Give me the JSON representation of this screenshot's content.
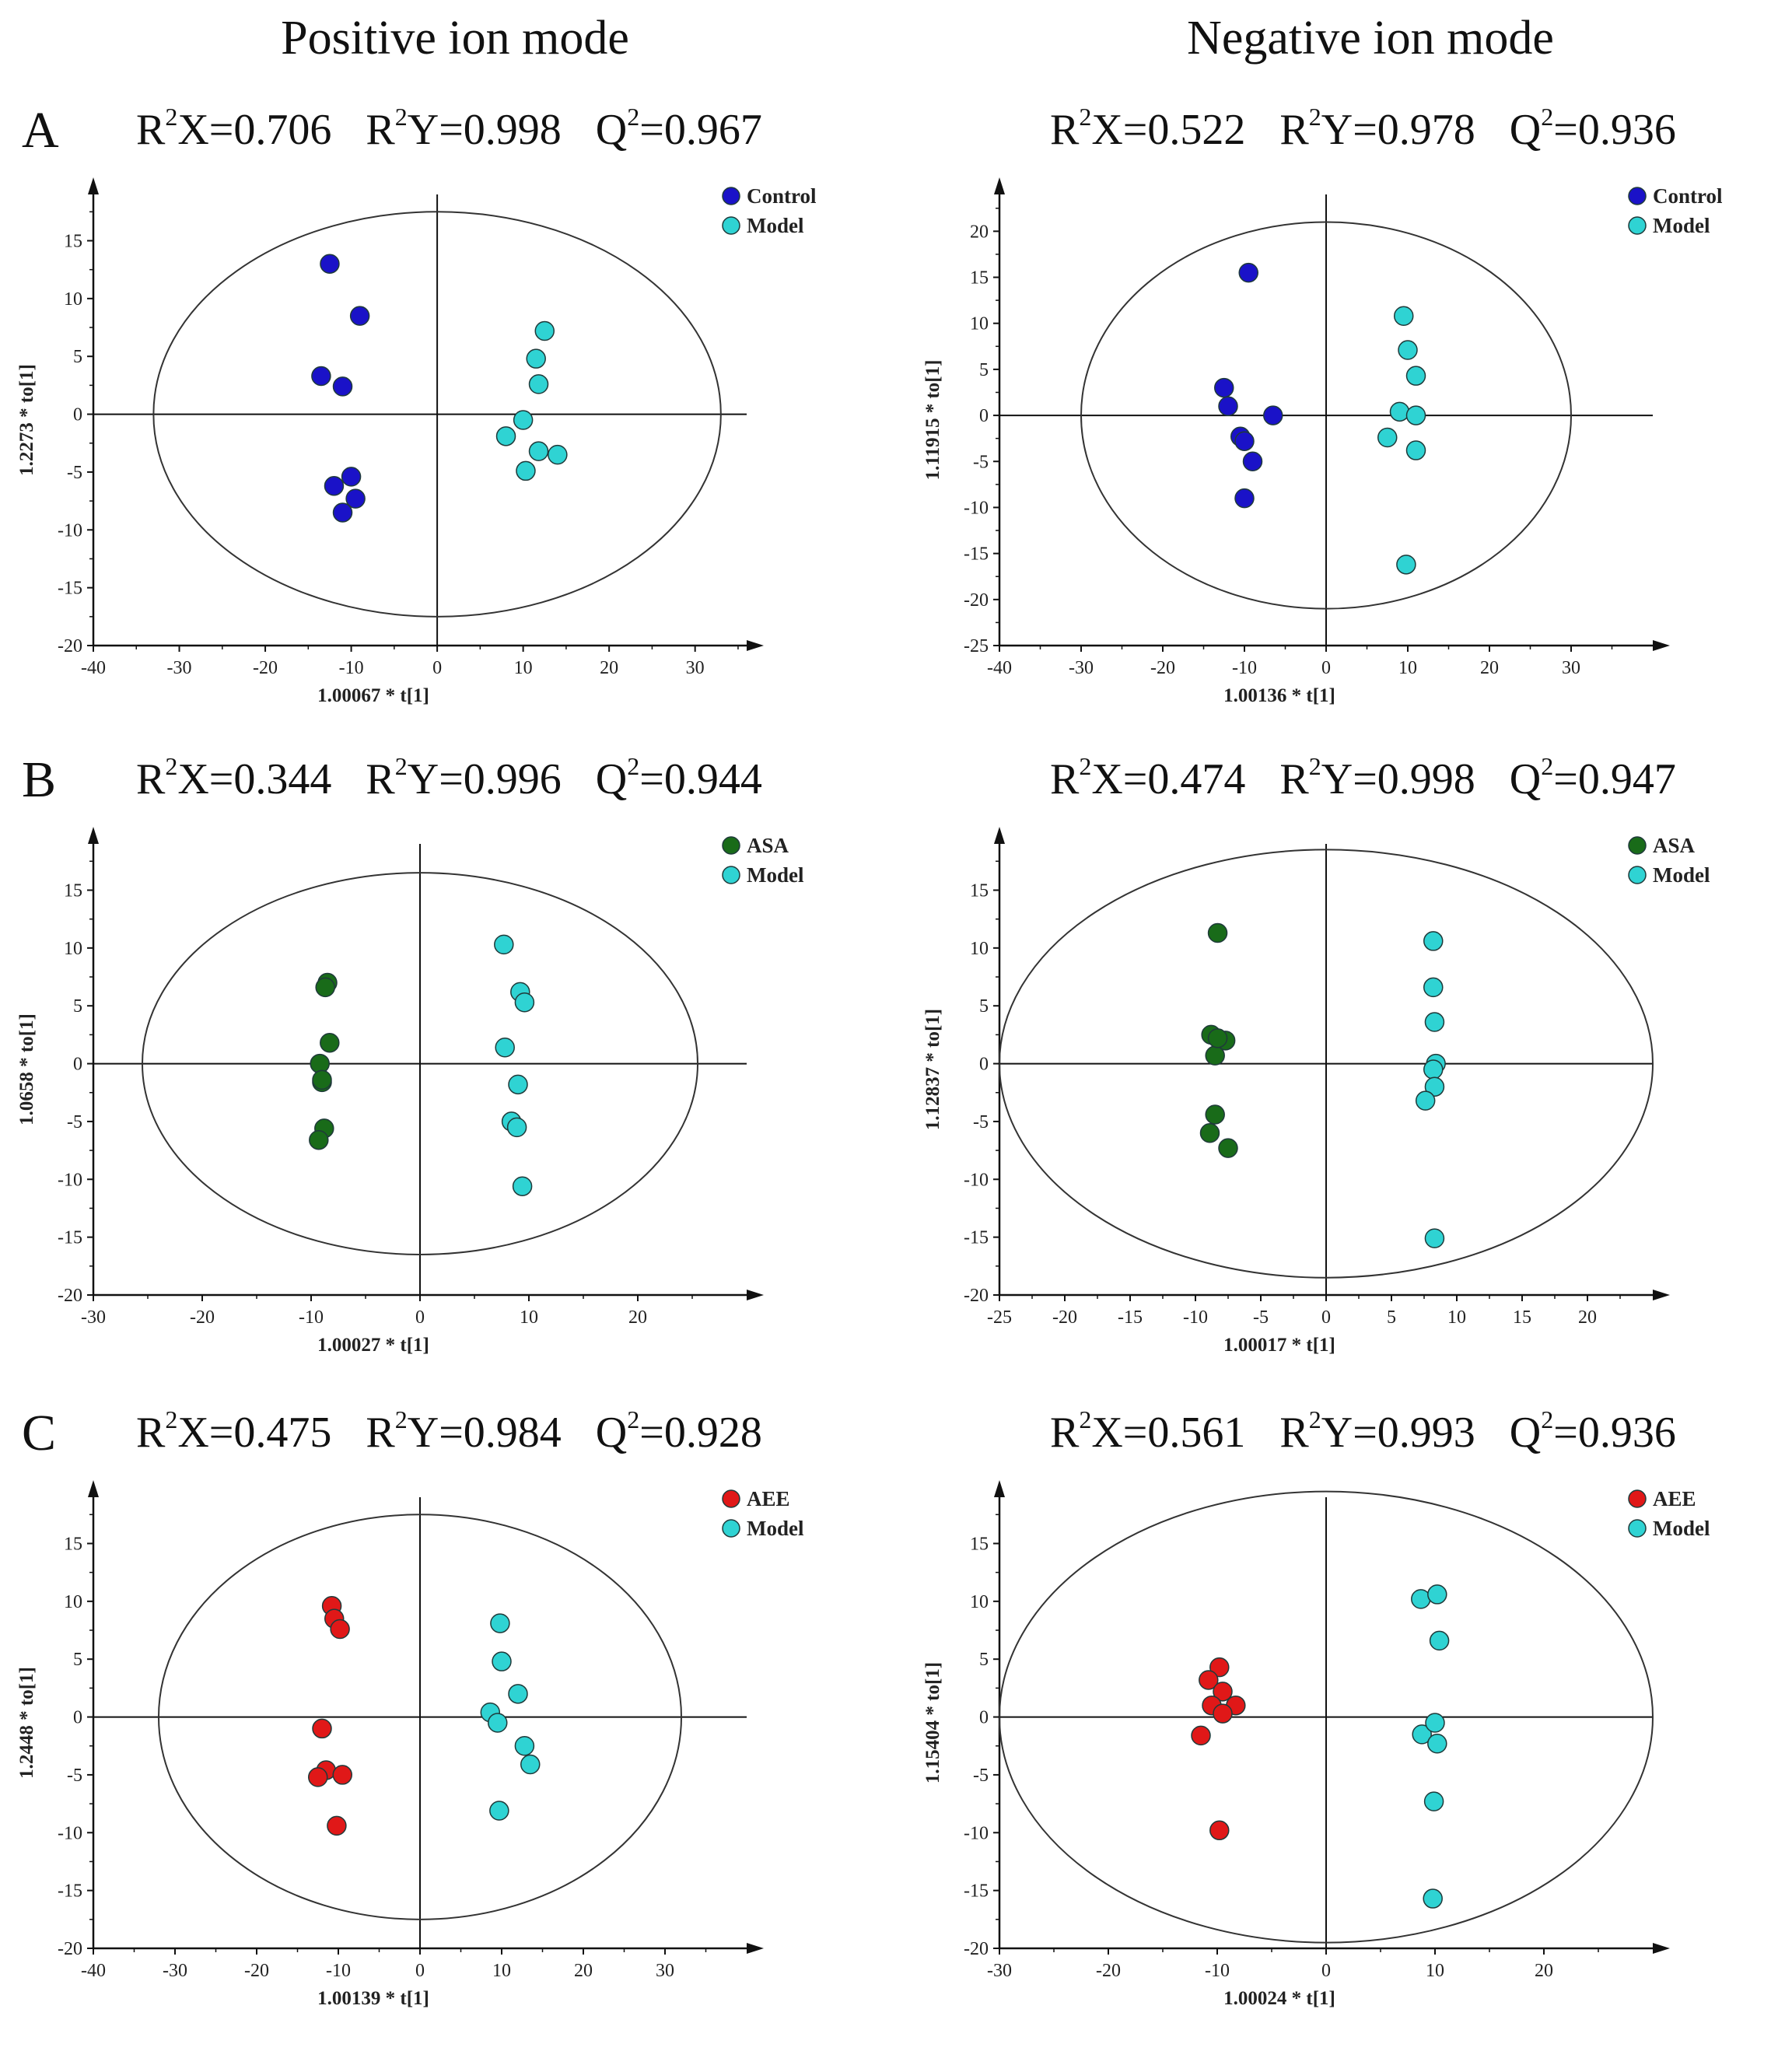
{
  "column_titles": {
    "left": "Positive ion mode",
    "right": "Negative ion mode"
  },
  "colors": {
    "control": "#1a12c8",
    "model": "#2fd3d3",
    "asa": "#196b19",
    "aee": "#e01818",
    "axis": "#111111",
    "ellipse": "#333333"
  },
  "rows": [
    {
      "letter": "A",
      "left": {
        "r2x": "0.706",
        "r2y": "0.998",
        "q2": "0.967"
      },
      "right": {
        "r2x": "0.522",
        "r2y": "0.978",
        "q2": "0.936"
      }
    },
    {
      "letter": "B",
      "left": {
        "r2x": "0.344",
        "r2y": "0.996",
        "q2": "0.944"
      },
      "right": {
        "r2x": "0.474",
        "r2y": "0.998",
        "q2": "0.947"
      }
    },
    {
      "letter": "C",
      "left": {
        "r2x": "0.475",
        "r2y": "0.984",
        "q2": "0.928"
      },
      "right": {
        "r2x": "0.561",
        "r2y": "0.993",
        "q2": "0.936"
      }
    }
  ],
  "stat_labels": {
    "r2x_pre": "R",
    "r2x_post": "X=",
    "r2y_pre": "R",
    "r2y_post": "Y=",
    "q2_pre": "Q",
    "q2_post": "=",
    "sup": "2"
  },
  "chart_data": [
    {
      "id": "A-pos",
      "type": "scatter",
      "xlabel": "1.00067 * t[1]",
      "ylabel": "1.2273 * to[1]",
      "xlim": [
        -40,
        36
      ],
      "ylim": [
        -20,
        19
      ],
      "xticks": [
        -40,
        -30,
        -20,
        -10,
        0,
        10,
        20,
        30
      ],
      "yticks": [
        -20,
        -15,
        -10,
        -5,
        0,
        5,
        10,
        15
      ],
      "ellipse": {
        "rx": 33,
        "ry": 17.5
      },
      "legend": "top-right",
      "series": [
        {
          "name": "Control",
          "color": "control",
          "points": [
            [
              -12.5,
              13
            ],
            [
              -9,
              8.5
            ],
            [
              -13.5,
              3.3
            ],
            [
              -11,
              2.4
            ],
            [
              -10,
              -5.4
            ],
            [
              -12,
              -6.2
            ],
            [
              -9.5,
              -7.3
            ],
            [
              -11,
              -8.5
            ]
          ]
        },
        {
          "name": "Model",
          "color": "model",
          "points": [
            [
              12.5,
              7.2
            ],
            [
              11.5,
              4.8
            ],
            [
              11.8,
              2.6
            ],
            [
              10,
              -0.5
            ],
            [
              8,
              -1.9
            ],
            [
              11.8,
              -3.2
            ],
            [
              14,
              -3.5
            ],
            [
              10.3,
              -4.9
            ]
          ]
        }
      ]
    },
    {
      "id": "A-neg",
      "type": "scatter",
      "xlabel": "1.00136 * t[1]",
      "ylabel": "1.11915 * to[1]",
      "xlim": [
        -40,
        40
      ],
      "ylim": [
        -25,
        24
      ],
      "xticks": [
        -40,
        -30,
        -20,
        -10,
        0,
        10,
        20,
        30
      ],
      "yticks": [
        -25,
        -20,
        -15,
        -10,
        -5,
        0,
        5,
        10,
        15,
        20
      ],
      "ellipse": {
        "rx": 30,
        "ry": 21
      },
      "legend": "top-right",
      "series": [
        {
          "name": "Control",
          "color": "control",
          "points": [
            [
              -9.5,
              15.5
            ],
            [
              -12.5,
              3
            ],
            [
              -12,
              1
            ],
            [
              -10.5,
              -2.3
            ],
            [
              -10,
              -2.8
            ],
            [
              -6.5,
              0
            ],
            [
              -9,
              -5
            ],
            [
              -10,
              -9
            ]
          ]
        },
        {
          "name": "Model",
          "color": "model",
          "points": [
            [
              9.5,
              10.8
            ],
            [
              10,
              7.1
            ],
            [
              11,
              4.3
            ],
            [
              9,
              0.4
            ],
            [
              11,
              0
            ],
            [
              7.5,
              -2.4
            ],
            [
              11,
              -3.8
            ],
            [
              9.8,
              -16.2
            ]
          ]
        }
      ]
    },
    {
      "id": "B-pos",
      "type": "scatter",
      "xlabel": "1.00027 * t[1]",
      "ylabel": "1.0658 * to[1]",
      "xlim": [
        -30,
        30
      ],
      "ylim": [
        -20,
        19
      ],
      "xticks": [
        -30,
        -20,
        -10,
        0,
        10,
        20
      ],
      "yticks": [
        -20,
        -15,
        -10,
        -5,
        0,
        5,
        10,
        15
      ],
      "ellipse": {
        "rx": 25.5,
        "ry": 16.5
      },
      "legend": "top-right",
      "series": [
        {
          "name": "ASA",
          "color": "asa",
          "points": [
            [
              -8.5,
              7
            ],
            [
              -8.7,
              6.6
            ],
            [
              -8.3,
              1.8
            ],
            [
              -9.2,
              0
            ],
            [
              -9,
              -1.6
            ],
            [
              -8.8,
              -5.6
            ],
            [
              -9.3,
              -6.6
            ],
            [
              -9,
              -1.4
            ]
          ]
        },
        {
          "name": "Model",
          "color": "model",
          "points": [
            [
              7.7,
              10.3
            ],
            [
              9.2,
              6.2
            ],
            [
              9.6,
              5.3
            ],
            [
              7.8,
              1.4
            ],
            [
              9,
              -1.8
            ],
            [
              8.4,
              -5
            ],
            [
              8.9,
              -5.5
            ],
            [
              9.4,
              -10.6
            ]
          ]
        }
      ]
    },
    {
      "id": "B-neg",
      "type": "scatter",
      "xlabel": "1.00017 * t[1]",
      "ylabel": "1.12837 * to[1]",
      "xlim": [
        -25,
        25
      ],
      "ylim": [
        -20,
        19
      ],
      "xticks": [
        -25,
        -20,
        -15,
        -10,
        -5,
        0,
        5,
        10,
        15,
        20
      ],
      "yticks": [
        -20,
        -15,
        -10,
        -5,
        0,
        5,
        10,
        15
      ],
      "ellipse": {
        "rx": 25,
        "ry": 18.5
      },
      "legend": "top-right",
      "series": [
        {
          "name": "ASA",
          "color": "asa",
          "points": [
            [
              -8.3,
              11.3
            ],
            [
              -8.8,
              2.5
            ],
            [
              -7.7,
              2
            ],
            [
              -8.5,
              0.7
            ],
            [
              -8.5,
              -4.4
            ],
            [
              -8.9,
              -6
            ],
            [
              -7.5,
              -7.3
            ],
            [
              -8.3,
              2.2
            ]
          ]
        },
        {
          "name": "Model",
          "color": "model",
          "points": [
            [
              8.2,
              10.6
            ],
            [
              8.2,
              6.6
            ],
            [
              8.3,
              3.6
            ],
            [
              8.4,
              0
            ],
            [
              8.2,
              -0.5
            ],
            [
              8.3,
              -2
            ],
            [
              7.6,
              -3.2
            ],
            [
              8.3,
              -15.1
            ]
          ]
        }
      ]
    },
    {
      "id": "C-pos",
      "type": "scatter",
      "xlabel": "1.00139 * t[1]",
      "ylabel": "1.2448 * to[1]",
      "xlim": [
        -40,
        40
      ],
      "ylim": [
        -20,
        19
      ],
      "xticks": [
        -40,
        -30,
        -20,
        -10,
        0,
        10,
        20,
        30
      ],
      "yticks": [
        -20,
        -15,
        -10,
        -5,
        0,
        5,
        10,
        15
      ],
      "ellipse": {
        "rx": 32,
        "ry": 17.5
      },
      "legend": "top-right",
      "series": [
        {
          "name": "AEE",
          "color": "aee",
          "points": [
            [
              -10.8,
              9.6
            ],
            [
              -10.5,
              8.5
            ],
            [
              -9.8,
              7.6
            ],
            [
              -12,
              -1
            ],
            [
              -11.5,
              -4.6
            ],
            [
              -12.5,
              -5.2
            ],
            [
              -9.5,
              -5
            ],
            [
              -10.2,
              -9.4
            ]
          ]
        },
        {
          "name": "Model",
          "color": "model",
          "points": [
            [
              9.8,
              8.1
            ],
            [
              10,
              4.8
            ],
            [
              12,
              2
            ],
            [
              8.6,
              0.4
            ],
            [
              9.5,
              -0.5
            ],
            [
              12.8,
              -2.5
            ],
            [
              13.5,
              -4.1
            ],
            [
              9.7,
              -8.1
            ]
          ]
        }
      ]
    },
    {
      "id": "C-neg",
      "type": "scatter",
      "xlabel": "1.00024 * t[1]",
      "ylabel": "1.15404 * to[1]",
      "xlim": [
        -30,
        30
      ],
      "ylim": [
        -20,
        19
      ],
      "xticks": [
        -30,
        -20,
        -10,
        0,
        10,
        20
      ],
      "yticks": [
        -20,
        -15,
        -10,
        -5,
        0,
        5,
        10,
        15
      ],
      "ellipse": {
        "rx": 30,
        "ry": 19.5
      },
      "legend": "top-right",
      "series": [
        {
          "name": "AEE",
          "color": "aee",
          "points": [
            [
              -9.8,
              4.3
            ],
            [
              -10.8,
              3.2
            ],
            [
              -9.5,
              2.2
            ],
            [
              -10.5,
              1
            ],
            [
              -8.3,
              1
            ],
            [
              -9.5,
              0.3
            ],
            [
              -11.5,
              -1.6
            ],
            [
              -9.8,
              -9.8
            ]
          ]
        },
        {
          "name": "Model",
          "color": "model",
          "points": [
            [
              8.7,
              10.2
            ],
            [
              10.2,
              10.6
            ],
            [
              10.4,
              6.6
            ],
            [
              8.8,
              -1.5
            ],
            [
              10,
              -0.5
            ],
            [
              10.2,
              -2.3
            ],
            [
              9.9,
              -7.3
            ],
            [
              9.8,
              -15.7
            ]
          ]
        }
      ]
    }
  ]
}
